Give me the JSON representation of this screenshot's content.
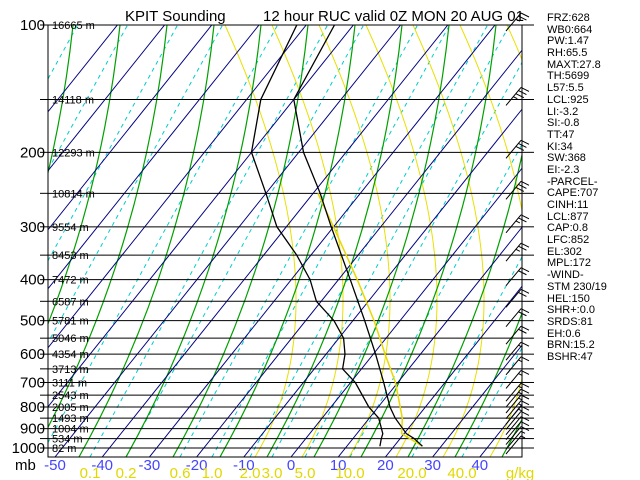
{
  "header": {
    "station_title": "KPIT Sounding",
    "valid_label": "12 hour RUC valid 0Z MON 20 AUG 01"
  },
  "panel": {
    "lines": [
      "FRZ:628",
      "WB0:664",
      "PW:1.47",
      "RH:65.5",
      "MAXT:27.8",
      "TH:5699",
      "L57:5.5",
      "LCL:925",
      "LI:-3.2",
      "SI:-0.8",
      "TT:47",
      "KI:34",
      "SW:368",
      "EI:-2.3",
      "-PARCEL-",
      "CAPE:707",
      "CINH:11",
      "LCL:877",
      "CAP:0.8",
      "LFC:852",
      "EL:302",
      "MPL:172",
      "-WIND-",
      "STM 230/19",
      "HEL:150",
      "SHR+:0.0",
      "SRDS:81",
      "EH:0.6",
      "BRN:15.2",
      "BSHR:47"
    ]
  },
  "axes": {
    "pressure_unit": "mb",
    "pressure_major_labels": [
      100,
      200,
      300,
      400,
      500,
      600,
      700,
      800,
      900,
      1000
    ],
    "pressure_levels_all": [
      100,
      150,
      200,
      250,
      300,
      350,
      400,
      450,
      500,
      550,
      600,
      650,
      700,
      750,
      800,
      850,
      900,
      950,
      1000
    ],
    "height_unit": "m",
    "height_labels": [
      16665,
      14118,
      12293,
      10814,
      9554,
      8453,
      7472,
      6587,
      5781,
      5046,
      4354,
      3713,
      3111,
      2543,
      2005,
      1493,
      1004,
      534,
      82
    ],
    "temp_unit": "C",
    "temp_tick_labels": [
      -50,
      -40,
      -30,
      -20,
      -10,
      0,
      10,
      20,
      30,
      40
    ],
    "mixing_ratio_tick_labels": [
      "0.1",
      "0.2",
      "0.6",
      "1.0",
      "2.0",
      "3.0",
      "5.0",
      "10.0",
      "20.0",
      "40.0"
    ],
    "mixing_ratio_unit": "g/kg"
  },
  "chart_data": {
    "type": "line",
    "subtype": "skewt-log-p-sounding",
    "title": "KPIT Sounding",
    "subtitle": "12 hour RUC valid 0Z MON 20 AUG 01",
    "pressure_axis_range_mb": [
      100,
      1050
    ],
    "log_pressure_axis": true,
    "surface_temp_axis_range_c": [
      -50,
      40
    ],
    "grid": "skewed isotherms, dry/moist adiabats, mixing-ratio lines",
    "temperature_profile_p_t": [
      [
        990,
        26
      ],
      [
        950,
        23
      ],
      [
        925,
        20.5
      ],
      [
        850,
        15.5
      ],
      [
        800,
        12.5
      ],
      [
        700,
        7
      ],
      [
        600,
        0.5
      ],
      [
        500,
        -7.5
      ],
      [
        400,
        -17.5
      ],
      [
        300,
        -30.5
      ],
      [
        250,
        -38.5
      ],
      [
        200,
        -49
      ],
      [
        150,
        -60
      ],
      [
        100,
        -64
      ]
    ],
    "dewpoint_profile_p_t": [
      [
        990,
        17
      ],
      [
        950,
        16
      ],
      [
        925,
        15.5
      ],
      [
        850,
        12
      ],
      [
        800,
        8
      ],
      [
        700,
        1
      ],
      [
        650,
        -4
      ],
      [
        600,
        -6
      ],
      [
        550,
        -9
      ],
      [
        500,
        -14
      ],
      [
        450,
        -21
      ],
      [
        400,
        -26
      ],
      [
        350,
        -33
      ],
      [
        300,
        -42
      ],
      [
        250,
        -50
      ],
      [
        200,
        -60
      ],
      [
        150,
        -67
      ],
      [
        100,
        -72
      ]
    ],
    "parcel_trace_p_t": [
      [
        990,
        26
      ],
      [
        925,
        19.5
      ],
      [
        850,
        17
      ],
      [
        700,
        9.5
      ],
      [
        600,
        2.5
      ],
      [
        500,
        -5.5
      ],
      [
        400,
        -16
      ],
      [
        300,
        -30
      ],
      [
        250,
        -39
      ]
    ],
    "wind_barbs_p_spd_kt": [
      [
        1000,
        5
      ],
      [
        975,
        8
      ],
      [
        950,
        10
      ],
      [
        925,
        12
      ],
      [
        900,
        13
      ],
      [
        875,
        13
      ],
      [
        850,
        15
      ],
      [
        825,
        15
      ],
      [
        800,
        16
      ],
      [
        775,
        16
      ],
      [
        750,
        17
      ],
      [
        700,
        18
      ],
      [
        650,
        18
      ],
      [
        600,
        19
      ],
      [
        550,
        20
      ],
      [
        500,
        21
      ],
      [
        450,
        22
      ],
      [
        400,
        23
      ],
      [
        350,
        25
      ],
      [
        300,
        27
      ],
      [
        250,
        31
      ],
      [
        200,
        34
      ],
      [
        150,
        36
      ],
      [
        100,
        27
      ]
    ],
    "storm_motion": "230/19",
    "colors": {
      "isotherm": "#000080",
      "dry_adiabat": "#00a000",
      "mixing_ratio_line": "#00cccc",
      "moist_adiabat": "#e8e000",
      "temp_axis_label": "#4444ff",
      "mixing_axis_label": "#e0d800",
      "sounding_curve": "#000000",
      "parcel_curve": "#e8d800",
      "grid_frame": "#000000"
    }
  }
}
